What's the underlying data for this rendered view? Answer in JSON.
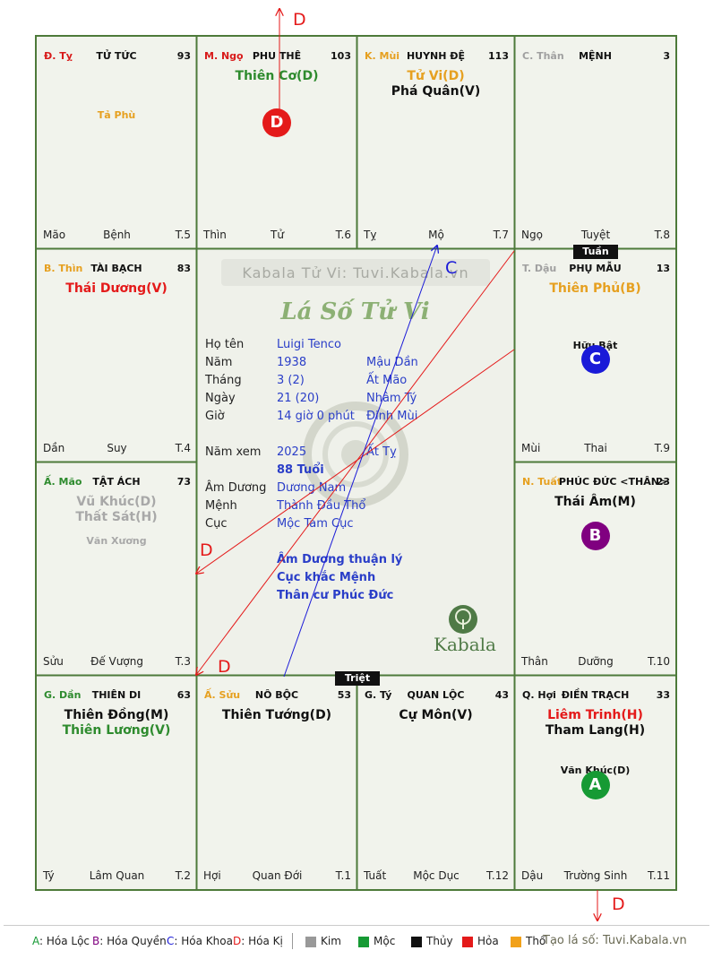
{
  "palaces": [
    {
      "id": "ty",
      "branch": "Đ. Tỵ",
      "name": "TỬ TỨC",
      "score": "93",
      "stars": [],
      "minor": [
        {
          "t": "Tả Phù",
          "c": "#e6a020"
        }
      ],
      "bottom": [
        "Mão",
        "Bệnh",
        "T.5"
      ]
    },
    {
      "id": "ngo",
      "branch": "M. Ngọ",
      "name": "PHU THÊ",
      "score": "103",
      "stars": [
        {
          "t": "Thiên Cơ(D)",
          "c": "#2e8b2e"
        }
      ],
      "minor": [],
      "circle": {
        "t": "D",
        "c": "#e41a1a"
      },
      "bottom": [
        "Thìn",
        "Tử",
        "T.6"
      ]
    },
    {
      "id": "mui",
      "branch": "K. Mùi",
      "name": "HUYNH ĐỆ",
      "score": "113",
      "stars": [
        {
          "t": "Tử Vi(D)",
          "c": "#e6a020"
        },
        {
          "t": "Phá Quân(V)",
          "c": "#111111"
        }
      ],
      "minor": [],
      "bottom": [
        "Tỵ",
        "Mộ",
        "T.7"
      ]
    },
    {
      "id": "than",
      "branch": "C. Thân",
      "name": "MỆNH",
      "score": "3",
      "stars": [],
      "minor": [],
      "bottom": [
        "Ngọ",
        "Tuyệt",
        "T.8"
      ]
    },
    {
      "id": "thin",
      "branch": "B. Thìn",
      "name": "TÀI BẠCH",
      "score": "83",
      "stars": [
        {
          "t": "Thái Dương(V)",
          "c": "#e41a1a"
        }
      ],
      "minor": [],
      "bottom": [
        "Dần",
        "Suy",
        "T.4"
      ]
    },
    {
      "id": "dau",
      "branch": "T. Dậu",
      "name": "PHỤ MẪU",
      "score": "13",
      "stars": [
        {
          "t": "Thiên Phủ(B)",
          "c": "#e6a020"
        }
      ],
      "minor": [
        {
          "t": "Hữu Bật",
          "c": "#111111"
        }
      ],
      "circle": {
        "t": "C",
        "c": "#1a1ad8"
      },
      "bottom": [
        "Mùi",
        "Thai",
        "T.9"
      ]
    },
    {
      "id": "mao",
      "branch": "Ấ. Mão",
      "name": "TẬT ÁCH",
      "score": "73",
      "stars": [
        {
          "t": "Vũ Khúc(D)",
          "c": "#a8a8a8"
        },
        {
          "t": "Thất Sát(H)",
          "c": "#a8a8a8"
        }
      ],
      "minor": [
        {
          "t": "Văn Xương",
          "c": "#a8a8a8"
        }
      ],
      "bottom": [
        "Sửu",
        "Đế Vượng",
        "T.3"
      ]
    },
    {
      "id": "tuat",
      "branch": "N. Tuất",
      "name": "PHÚC ĐỨC <THÂN>",
      "score": "23",
      "stars": [
        {
          "t": "Thái Âm(M)",
          "c": "#111111"
        }
      ],
      "minor": [],
      "circle": {
        "t": "B",
        "c": "#800080"
      },
      "bottom": [
        "Thân",
        "Dưỡng",
        "T.10"
      ]
    },
    {
      "id": "dan",
      "branch": "G. Dần",
      "name": "THIÊN DI",
      "score": "63",
      "stars": [
        {
          "t": "Thiên Đồng(M)",
          "c": "#111111"
        },
        {
          "t": "Thiên Lương(V)",
          "c": "#2e8b2e"
        }
      ],
      "minor": [],
      "bottom": [
        "Tý",
        "Lâm Quan",
        "T.2"
      ]
    },
    {
      "id": "suu",
      "branch": "Ấ. Sửu",
      "name": "NÔ BỘC",
      "score": "53",
      "stars": [
        {
          "t": "Thiên Tướng(D)",
          "c": "#111111"
        }
      ],
      "minor": [],
      "bottom": [
        "Hợi",
        "Quan Đới",
        "T.1"
      ]
    },
    {
      "id": "tyy",
      "branch": "G. Tý",
      "name": "QUAN LỘC",
      "score": "43",
      "stars": [
        {
          "t": "Cự Môn(V)",
          "c": "#111111"
        }
      ],
      "minor": [],
      "bottom": [
        "Tuất",
        "Mộc Dục",
        "T.12"
      ]
    },
    {
      "id": "hoi",
      "branch": "Q. Hợi",
      "name": "ĐIỀN TRẠCH",
      "score": "33",
      "stars": [
        {
          "t": "Liêm Trinh(H)",
          "c": "#e41a1a"
        },
        {
          "t": "Tham Lang(H)",
          "c": "#111111"
        }
      ],
      "minor": [
        {
          "t": "Văn Khúc(D)",
          "c": "#111111"
        }
      ],
      "circle": {
        "t": "A",
        "c": "#169a34"
      },
      "bottom": [
        "Dậu",
        "Trường Sinh",
        "T.11"
      ]
    }
  ],
  "center": {
    "watermark": "Kabala Tử Vi: Tuvi.Kabala.vn",
    "title": "Lá Số Tử Vi",
    "rows": [
      {
        "label": "Họ tên",
        "value": "Luigi Tenco",
        "extra": ""
      },
      {
        "label": "Năm",
        "value": "1938",
        "extra": "Mậu Dần"
      },
      {
        "label": "Tháng",
        "value": "3  (2)",
        "extra": "Ất Mão"
      },
      {
        "label": "Ngày",
        "value": "21  (20)",
        "extra": "Nhâm Tý"
      },
      {
        "label": "Giờ",
        "value": "14 giờ 0 phút",
        "extra": "Đinh Mùi"
      },
      {
        "label": "Năm xem",
        "value": "2025",
        "extra": "Ất Tỵ"
      },
      {
        "label": "",
        "value": "88 Tuổi",
        "extra": ""
      },
      {
        "label": "Âm Dương",
        "value": "Dương Nam",
        "extra": ""
      },
      {
        "label": "Mệnh",
        "value": "Thành Đầu Thổ",
        "extra": ""
      },
      {
        "label": "Cục",
        "value": "Mộc Tam Cục",
        "extra": ""
      }
    ],
    "notes": [
      "Âm Dương thuận lý",
      "Cục khắc Mệnh",
      "Thân cư Phúc Đức"
    ],
    "logo": "Kabala"
  },
  "badges": {
    "tuan": "Tuần",
    "triet": "Triệt"
  },
  "arrow_labels": {
    "top": "D",
    "c_mo": "C",
    "left_mid": "D",
    "left_low": "D",
    "bottom": "D"
  },
  "legend": {
    "hoa": [
      {
        "key": "A",
        "label": ": Hóa Lộc",
        "c": "#169a34"
      },
      {
        "key": "B",
        "label": ": Hóa Quyền",
        "c": "#800080"
      },
      {
        "key": "C",
        "label": ": Hóa Khoa",
        "c": "#1a1ad8"
      },
      {
        "key": "D",
        "label": ": Hóa Kị",
        "c": "#e41a1a"
      }
    ],
    "elements": [
      {
        "label": "Kim",
        "c": "#999999"
      },
      {
        "label": "Mộc",
        "c": "#169a34"
      },
      {
        "label": "Thủy",
        "c": "#111111"
      },
      {
        "label": "Hỏa",
        "c": "#e41a1a"
      },
      {
        "label": "Thổ",
        "c": "#f1a11a"
      }
    ],
    "credit": "Tạo lá số: Tuvi.Kabala.vn"
  },
  "colors": {
    "grid": "#4d7a3a",
    "arrow_red": "#e41a1a",
    "arrow_blue": "#1a1ad8",
    "branch_red": "#d81a1a",
    "branch_orange": "#e6a020",
    "branch_gray": "#a0a0a0",
    "branch_green": "#2e8b2e"
  }
}
